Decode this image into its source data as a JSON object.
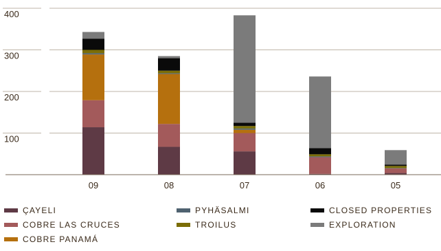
{
  "chart_data": {
    "type": "bar",
    "stacked": true,
    "categories": [
      "09",
      "08",
      "07",
      "06",
      "05"
    ],
    "ylim": [
      0,
      400
    ],
    "yticks": [
      100,
      200,
      300,
      400
    ],
    "grid": true,
    "legend_position": "bottom",
    "series": [
      {
        "name": "ÇAYELI",
        "color": "#5e3a45",
        "values": [
          114,
          67,
          56,
          2,
          4
        ]
      },
      {
        "name": "COBRE LAS CRUCES",
        "color": "#a35a5b",
        "values": [
          65,
          55,
          44,
          40,
          11
        ]
      },
      {
        "name": "COBRE PANAMÁ",
        "color": "#b5700e",
        "values": [
          110,
          120,
          8,
          0,
          0
        ]
      },
      {
        "name": "PYHÄSALMI",
        "color": "#4f6270",
        "values": [
          3,
          2,
          3,
          2,
          1
        ]
      },
      {
        "name": "TROILUS",
        "color": "#7b6d06",
        "values": [
          8,
          6,
          6,
          5,
          5
        ]
      },
      {
        "name": "CLOSED PROPERTIES",
        "color": "#0a0a0a",
        "values": [
          27,
          30,
          8,
          15,
          3
        ]
      },
      {
        "name": "EXPLORATION",
        "color": "#7b7b7b",
        "values": [
          16,
          5,
          258,
          172,
          35
        ]
      }
    ]
  }
}
